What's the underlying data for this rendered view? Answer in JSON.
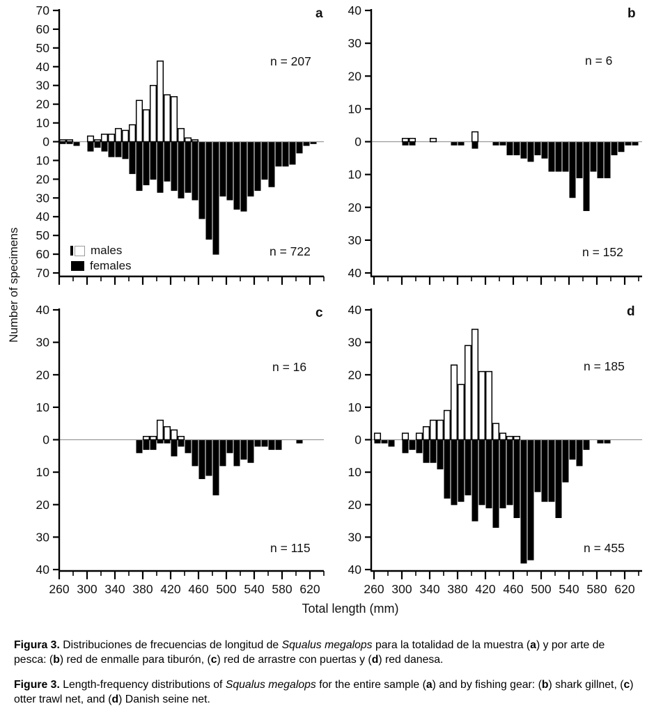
{
  "figure": {
    "y_axis_title": "Number of specimens",
    "x_axis_title": "Total length (mm)",
    "legend": {
      "males": "males",
      "females": "females"
    },
    "colors": {
      "male_bar_fill": "#ffffff",
      "male_bar_stroke": "#000000",
      "female_bar_fill": "#000000",
      "zero_line": "#9a9a9a",
      "axis": "#000000"
    }
  },
  "chart_data": {
    "type": "bar",
    "subtype": "diverging length-frequency histograms (males up, females down)",
    "xlabel": "Total length (mm)",
    "ylabel": "Number of specimens",
    "legend_entries": [
      "males",
      "females"
    ],
    "bin_width_mm": 10,
    "bin_centers_mm": [
      265,
      275,
      285,
      295,
      305,
      315,
      325,
      335,
      345,
      355,
      365,
      375,
      385,
      395,
      405,
      415,
      425,
      435,
      445,
      455,
      465,
      475,
      485,
      495,
      505,
      515,
      525,
      535,
      545,
      555,
      565,
      575,
      585,
      595,
      605,
      615,
      625,
      635
    ],
    "x_axis_tick_labels": [
      260,
      300,
      340,
      380,
      420,
      460,
      500,
      540,
      580,
      620
    ],
    "x_minor_tick_step_mm": 20,
    "panels": [
      {
        "panel": "a",
        "letter": "a",
        "ylim": [
          -70,
          70
        ],
        "ytick_step": 10,
        "series": [
          {
            "name": "males",
            "n": 207,
            "label": "n = 207",
            "values": [
              1,
              1,
              0,
              0,
              3,
              1,
              4,
              4,
              7,
              6,
              9,
              22,
              17,
              30,
              43,
              25,
              24,
              7,
              2,
              1,
              0,
              0,
              0,
              0,
              0,
              0,
              0,
              0,
              0,
              0,
              0,
              0,
              0,
              0,
              0,
              0,
              0,
              0
            ]
          },
          {
            "name": "females",
            "n": 722,
            "label": "n = 722",
            "values": [
              1,
              1,
              2,
              0,
              5,
              3,
              5,
              8,
              8,
              9,
              17,
              26,
              23,
              20,
              27,
              21,
              26,
              30,
              27,
              31,
              41,
              52,
              60,
              29,
              31,
              36,
              37,
              29,
              26,
              20,
              24,
              13,
              13,
              12,
              6,
              2,
              1,
              0
            ]
          }
        ]
      },
      {
        "panel": "b",
        "letter": "b",
        "ylim": [
          -40,
          40
        ],
        "ytick_step": 10,
        "series": [
          {
            "name": "males",
            "n": 6,
            "label": "n = 6",
            "values": [
              0,
              0,
              0,
              0,
              1,
              1,
              0,
              0,
              1,
              0,
              0,
              0,
              0,
              0,
              3,
              0,
              0,
              0,
              0,
              0,
              0,
              0,
              0,
              0,
              0,
              0,
              0,
              0,
              0,
              0,
              0,
              0,
              0,
              0,
              0,
              0,
              0,
              0
            ]
          },
          {
            "name": "females",
            "n": 152,
            "label": "n = 152",
            "values": [
              0,
              0,
              0,
              0,
              1,
              1,
              0,
              0,
              0,
              0,
              0,
              1,
              1,
              0,
              2,
              0,
              0,
              1,
              1,
              4,
              4,
              5,
              6,
              4,
              5,
              9,
              9,
              9,
              17,
              11,
              21,
              9,
              11,
              11,
              4,
              3,
              1,
              1
            ]
          }
        ]
      },
      {
        "panel": "c",
        "letter": "c",
        "ylim": [
          -40,
          40
        ],
        "ytick_step": 10,
        "series": [
          {
            "name": "males",
            "n": 16,
            "label": "n = 16",
            "values": [
              0,
              0,
              0,
              0,
              0,
              0,
              0,
              0,
              0,
              0,
              0,
              0,
              1,
              1,
              6,
              4,
              3,
              1,
              0,
              0,
              0,
              0,
              0,
              0,
              0,
              0,
              0,
              0,
              0,
              0,
              0,
              0,
              0,
              0,
              0,
              0,
              0,
              0
            ]
          },
          {
            "name": "females",
            "n": 115,
            "label": "n = 115",
            "values": [
              0,
              0,
              0,
              0,
              0,
              0,
              0,
              0,
              0,
              0,
              0,
              4,
              3,
              3,
              1,
              1,
              5,
              2,
              4,
              8,
              12,
              11,
              17,
              8,
              4,
              8,
              6,
              7,
              2,
              2,
              3,
              3,
              0,
              0,
              1,
              0,
              0,
              0
            ]
          }
        ]
      },
      {
        "panel": "d",
        "letter": "d",
        "ylim": [
          -40,
          40
        ],
        "ytick_step": 10,
        "series": [
          {
            "name": "males",
            "n": 185,
            "label": "n = 185",
            "values": [
              2,
              0,
              0,
              0,
              2,
              0,
              2,
              4,
              6,
              6,
              9,
              23,
              17,
              29,
              34,
              21,
              21,
              5,
              2,
              1,
              1,
              0,
              0,
              0,
              0,
              0,
              0,
              0,
              0,
              0,
              0,
              0,
              0,
              0,
              0,
              0,
              0,
              0
            ]
          },
          {
            "name": "females",
            "n": 455,
            "label": "n = 455",
            "values": [
              1,
              1,
              2,
              0,
              4,
              3,
              4,
              7,
              7,
              9,
              18,
              20,
              19,
              17,
              25,
              20,
              21,
              27,
              21,
              20,
              24,
              38,
              37,
              16,
              19,
              19,
              24,
              13,
              6,
              8,
              3,
              0,
              1,
              1,
              0,
              0,
              0,
              0
            ]
          }
        ]
      }
    ]
  },
  "captions": {
    "es": {
      "segments": [
        {
          "text": "Figura 3.",
          "style": "bold"
        },
        {
          "text": " Distribuciones de frecuencias de longitud de ",
          "style": "normal"
        },
        {
          "text": "Squalus megalops",
          "style": "italic"
        },
        {
          "text": " para la totalidad de la muestra (",
          "style": "normal"
        },
        {
          "text": "a",
          "style": "bold"
        },
        {
          "text": ") y por arte de pesca: (",
          "style": "normal"
        },
        {
          "text": "b",
          "style": "bold"
        },
        {
          "text": ") red de enmalle para tiburón, (",
          "style": "normal"
        },
        {
          "text": "c",
          "style": "bold"
        },
        {
          "text": ") red de arrastre con puertas y (",
          "style": "normal"
        },
        {
          "text": "d",
          "style": "bold"
        },
        {
          "text": ") red danesa.",
          "style": "normal"
        }
      ]
    },
    "en": {
      "segments": [
        {
          "text": "Figure 3.",
          "style": "bold"
        },
        {
          "text": " Length-frequency distributions of ",
          "style": "normal"
        },
        {
          "text": "Squalus megalops",
          "style": "italic"
        },
        {
          "text": " for the entire sample (",
          "style": "normal"
        },
        {
          "text": "a",
          "style": "bold"
        },
        {
          "text": ") and by fishing gear: (",
          "style": "normal"
        },
        {
          "text": "b",
          "style": "bold"
        },
        {
          "text": ") shark gillnet, (",
          "style": "normal"
        },
        {
          "text": "c",
          "style": "bold"
        },
        {
          "text": ") otter trawl net, and (",
          "style": "normal"
        },
        {
          "text": "d",
          "style": "bold"
        },
        {
          "text": ") Danish seine net.",
          "style": "normal"
        }
      ]
    }
  }
}
